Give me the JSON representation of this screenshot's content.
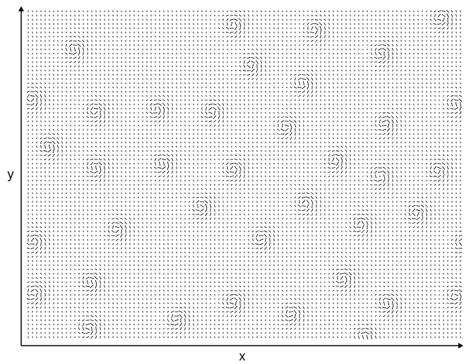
{
  "axes": {
    "x_label": "x",
    "y_label": "y"
  }
}
